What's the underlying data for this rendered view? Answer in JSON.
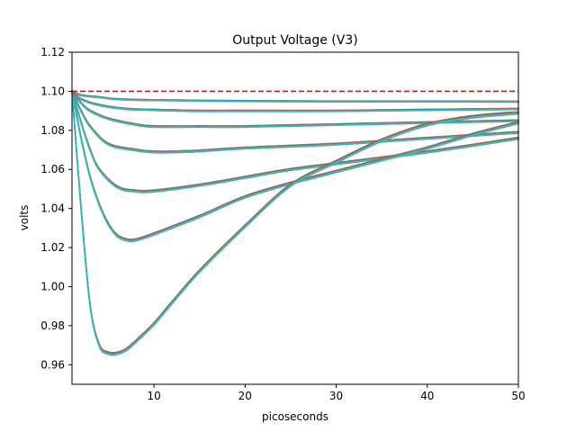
{
  "chart_data": {
    "type": "line",
    "title": "Output Voltage (V3)",
    "xlabel": "picoseconds",
    "ylabel": "volts",
    "xlim": [
      1,
      50
    ],
    "ylim": [
      0.95,
      1.12
    ],
    "x_ticks": [
      10,
      20,
      30,
      40,
      50
    ],
    "y_ticks": [
      0.96,
      0.98,
      1.0,
      1.02,
      1.04,
      1.06,
      1.08,
      1.1,
      1.12
    ],
    "x_tick_labels": [
      "10",
      "20",
      "30",
      "40",
      "50"
    ],
    "y_tick_labels": [
      "0.96",
      "0.98",
      "1.00",
      "1.02",
      "1.04",
      "1.06",
      "1.08",
      "1.10",
      "1.12"
    ],
    "grid": false,
    "legend": "none",
    "reference_line": {
      "y": 1.1,
      "color": "#ff0000",
      "style": "dashed"
    },
    "palette": [
      "#1f77b4",
      "#ff7f0e",
      "#2ca02c",
      "#d62728",
      "#9467bd",
      "#8c564b",
      "#e377c2",
      "#7f7f7f",
      "#bcbd22",
      "#17becf"
    ],
    "series": [
      {
        "x": [
          1,
          2,
          4,
          6,
          10,
          20,
          30,
          40,
          50
        ],
        "values": [
          1.1,
          1.098,
          1.097,
          1.096,
          1.0955,
          1.095,
          1.0948,
          1.0948,
          1.0947
        ]
      },
      {
        "x": [
          1,
          2,
          4,
          7,
          10,
          15,
          20,
          30,
          40,
          50
        ],
        "values": [
          1.1,
          1.096,
          1.093,
          1.091,
          1.0905,
          1.09,
          1.09,
          1.09,
          1.0905,
          1.091
        ]
      },
      {
        "x": [
          1,
          2,
          3,
          5,
          8,
          10,
          15,
          20,
          30,
          40,
          50
        ],
        "values": [
          1.1,
          1.094,
          1.09,
          1.086,
          1.083,
          1.082,
          1.082,
          1.082,
          1.083,
          1.084,
          1.085
        ]
      },
      {
        "x": [
          1,
          2,
          3,
          5,
          8,
          10,
          12,
          15,
          20,
          30,
          40,
          50
        ],
        "values": [
          1.1,
          1.09,
          1.082,
          1.073,
          1.07,
          1.069,
          1.069,
          1.0695,
          1.071,
          1.073,
          1.076,
          1.079
        ]
      },
      {
        "x": [
          1,
          2,
          3,
          4,
          6,
          8,
          10,
          15,
          20,
          25,
          30,
          40,
          50
        ],
        "values": [
          1.1,
          1.084,
          1.07,
          1.06,
          1.051,
          1.049,
          1.049,
          1.052,
          1.056,
          1.06,
          1.063,
          1.069,
          1.076
        ]
      },
      {
        "x": [
          1,
          2,
          3,
          4,
          5,
          6,
          7,
          8,
          10,
          15,
          20,
          25,
          30,
          35,
          40,
          45,
          50
        ],
        "values": [
          1.1,
          1.076,
          1.056,
          1.042,
          1.032,
          1.026,
          1.024,
          1.024,
          1.027,
          1.036,
          1.046,
          1.053,
          1.059,
          1.065,
          1.071,
          1.078,
          1.084
        ]
      },
      {
        "x": [
          1,
          2,
          3,
          4,
          5,
          6,
          7,
          8,
          10,
          12,
          15,
          20,
          25,
          30,
          35,
          40,
          45,
          50
        ],
        "values": [
          1.1,
          1.04,
          0.99,
          0.97,
          0.966,
          0.966,
          0.968,
          0.972,
          0.981,
          0.992,
          1.008,
          1.031,
          1.052,
          1.064,
          1.075,
          1.083,
          1.087,
          1.089
        ]
      }
    ]
  }
}
